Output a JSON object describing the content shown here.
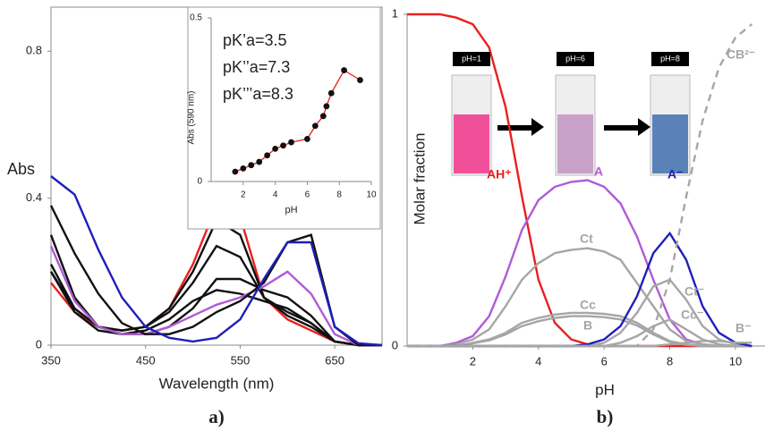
{
  "chart_data": [
    {
      "type": "line",
      "label": "a)",
      "ylabel": "Abs",
      "xlabel": "Wavelength (nm)",
      "xlim": [
        350,
        700
      ],
      "ylim": [
        0,
        0.92
      ],
      "xticks": [
        350,
        450,
        550,
        650
      ],
      "yticks": [
        0,
        0.4,
        0.8
      ],
      "x": [
        350,
        375,
        400,
        425,
        450,
        475,
        500,
        525,
        550,
        575,
        600,
        625,
        650,
        675,
        700
      ],
      "series": [
        {
          "color": "#e8201c",
          "values": [
            0.17,
            0.09,
            0.05,
            0.04,
            0.05,
            0.1,
            0.22,
            0.38,
            0.35,
            0.13,
            0.07,
            0.04,
            0.01,
            0,
            0
          ]
        },
        {
          "color": "#111111",
          "values": [
            0.22,
            0.1,
            0.05,
            0.04,
            0.05,
            0.1,
            0.2,
            0.34,
            0.3,
            0.13,
            0.08,
            0.05,
            0.01,
            0,
            0
          ]
        },
        {
          "color": "#111111",
          "values": [
            0.2,
            0.1,
            0.05,
            0.04,
            0.05,
            0.09,
            0.17,
            0.27,
            0.24,
            0.13,
            0.09,
            0.06,
            0.01,
            0,
            0
          ]
        },
        {
          "color": "#111111",
          "values": [
            0.2,
            0.09,
            0.04,
            0.03,
            0.04,
            0.07,
            0.12,
            0.15,
            0.14,
            0.12,
            0.1,
            0.06,
            0.01,
            0,
            0
          ]
        },
        {
          "color": "#111111",
          "values": [
            0.3,
            0.13,
            0.05,
            0.03,
            0.03,
            0.05,
            0.1,
            0.18,
            0.18,
            0.15,
            0.13,
            0.08,
            0.01,
            0,
            0
          ]
        },
        {
          "color": "#b05bd6",
          "values": [
            0.27,
            0.12,
            0.05,
            0.03,
            0.03,
            0.05,
            0.08,
            0.11,
            0.13,
            0.16,
            0.2,
            0.14,
            0.03,
            0,
            0
          ]
        },
        {
          "color": "#111111",
          "values": [
            0.38,
            0.25,
            0.14,
            0.06,
            0.03,
            0.03,
            0.05,
            0.09,
            0.12,
            0.17,
            0.28,
            0.3,
            0.05,
            0,
            0
          ]
        },
        {
          "color": "#1f1fb8",
          "values": [
            0.46,
            0.41,
            0.26,
            0.13,
            0.05,
            0.02,
            0.01,
            0.02,
            0.07,
            0.18,
            0.28,
            0.28,
            0.05,
            0.005,
            0
          ]
        }
      ]
    },
    {
      "type": "scatter",
      "ylabel": "Abs (590 nm)",
      "xlabel": "pH",
      "xlim": [
        0,
        10
      ],
      "ylim": [
        0,
        0.5
      ],
      "xticks": [
        2,
        4,
        6,
        8,
        10
      ],
      "yticks": [
        0,
        0.5
      ],
      "annotations": [
        "pK’a=3.5",
        "pK’’a=7.3",
        "pK’’’a=8.3"
      ],
      "color": "#111111",
      "fit_color": "#e8201c",
      "x": [
        1.5,
        2,
        2.5,
        3,
        3.5,
        4,
        4.5,
        5,
        6,
        6.5,
        7,
        7.2,
        7.5,
        8.3,
        9.3
      ],
      "values": [
        0.03,
        0.04,
        0.05,
        0.06,
        0.08,
        0.1,
        0.11,
        0.12,
        0.13,
        0.17,
        0.2,
        0.23,
        0.27,
        0.34,
        0.31
      ]
    },
    {
      "type": "line",
      "label": "b)",
      "ylabel": "Molar fraction",
      "xlabel": "pH",
      "xlim": [
        0,
        10.9
      ],
      "ylim": [
        0,
        1
      ],
      "xticks": [
        2,
        4,
        6,
        8,
        10
      ],
      "yticks": [
        0,
        1
      ],
      "annotations": [
        "pH=1",
        "pH=6",
        "pH=8"
      ],
      "x": [
        0,
        0.5,
        1,
        1.5,
        2,
        2.5,
        3,
        3.5,
        4,
        4.5,
        5,
        5.5,
        6,
        6.5,
        7,
        7.5,
        8,
        8.5,
        9,
        9.5,
        10,
        10.5
      ],
      "series": [
        {
          "name": "AH⁺",
          "color": "#e8201c",
          "values": [
            1,
            1,
            1,
            0.99,
            0.97,
            0.9,
            0.72,
            0.45,
            0.2,
            0.07,
            0.02,
            0.005,
            0,
            0,
            0,
            0,
            0,
            0,
            0,
            0,
            0,
            0
          ]
        },
        {
          "name": "A",
          "color": "#b05bd6",
          "values": [
            0,
            0,
            0,
            0.01,
            0.03,
            0.09,
            0.21,
            0.35,
            0.44,
            0.48,
            0.495,
            0.5,
            0.48,
            0.43,
            0.33,
            0.2,
            0.08,
            0.02,
            0.005,
            0,
            0,
            0
          ]
        },
        {
          "name": "Ct",
          "color": "#a6a6a6",
          "values": [
            0,
            0,
            0,
            0.005,
            0.02,
            0.05,
            0.12,
            0.2,
            0.25,
            0.28,
            0.29,
            0.295,
            0.285,
            0.26,
            0.19,
            0.12,
            0.05,
            0.015,
            0.005,
            0,
            0,
            0
          ]
        },
        {
          "name": "Cc",
          "color": "#a6a6a6",
          "values": [
            0,
            0,
            0,
            0,
            0.01,
            0.02,
            0.04,
            0.07,
            0.085,
            0.095,
            0.1,
            0.1,
            0.097,
            0.09,
            0.07,
            0.04,
            0.015,
            0.005,
            0,
            0,
            0,
            0
          ]
        },
        {
          "name": "B",
          "color": "#a6a6a6",
          "values": [
            0,
            0,
            0,
            0,
            0.008,
            0.017,
            0.035,
            0.06,
            0.075,
            0.085,
            0.09,
            0.09,
            0.087,
            0.08,
            0.062,
            0.035,
            0.012,
            0.004,
            0,
            0,
            0,
            0
          ]
        },
        {
          "name": "Ct⁻",
          "color": "#a6a6a6",
          "values": [
            0,
            0,
            0,
            0,
            0,
            0,
            0,
            0,
            0,
            0,
            0,
            0,
            0.01,
            0.04,
            0.1,
            0.18,
            0.2,
            0.14,
            0.06,
            0.02,
            0.005,
            0
          ]
        },
        {
          "name": "Cc⁻",
          "color": "#a6a6a6",
          "values": [
            0,
            0,
            0,
            0,
            0,
            0,
            0,
            0,
            0,
            0,
            0,
            0,
            0,
            0.01,
            0.03,
            0.06,
            0.08,
            0.05,
            0.02,
            0.005,
            0,
            0
          ]
        },
        {
          "name": "A⁻",
          "color": "#1f1fb8",
          "values": [
            0,
            0,
            0,
            0,
            0,
            0,
            0,
            0,
            0,
            0,
            0,
            0.005,
            0.02,
            0.06,
            0.15,
            0.28,
            0.34,
            0.26,
            0.12,
            0.04,
            0.01,
            0
          ]
        },
        {
          "name": "CB²⁻",
          "color": "#a6a6a6",
          "style": "dashed",
          "values": [
            0,
            0,
            0,
            0,
            0,
            0,
            0,
            0,
            0,
            0,
            0,
            0,
            0,
            0,
            0,
            0.05,
            0.2,
            0.45,
            0.68,
            0.84,
            0.93,
            0.97
          ]
        },
        {
          "name": "B⁻",
          "color": "#a6a6a6",
          "values": [
            0,
            0,
            0,
            0,
            0,
            0,
            0,
            0,
            0,
            0,
            0,
            0,
            0,
            0,
            0,
            0,
            0.005,
            0.01,
            0.015,
            0.015,
            0.01,
            0.01
          ]
        }
      ]
    }
  ]
}
